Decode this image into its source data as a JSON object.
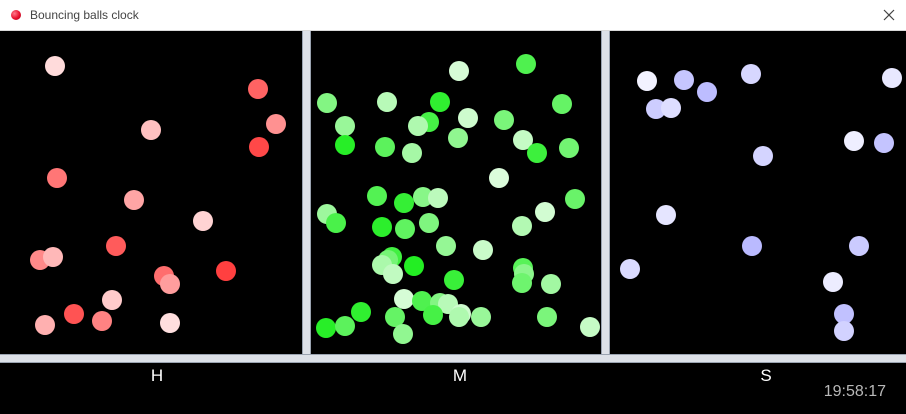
{
  "window": {
    "title": "Bouncing balls clock",
    "icon": "red-ball-icon",
    "close_icon": "close-icon"
  },
  "columns": {
    "hours_label": "H",
    "minutes_label": "M",
    "seconds_label": "S"
  },
  "clock": {
    "time": "19:58:17",
    "hours": 19,
    "minutes": 58,
    "seconds": 17
  },
  "colors": {
    "hours_base": "#ff3b3b",
    "minutes_base": "#22ee22",
    "seconds_base": "#b8b8ff",
    "divider": "#dde1e8",
    "background": "#000000"
  }
}
